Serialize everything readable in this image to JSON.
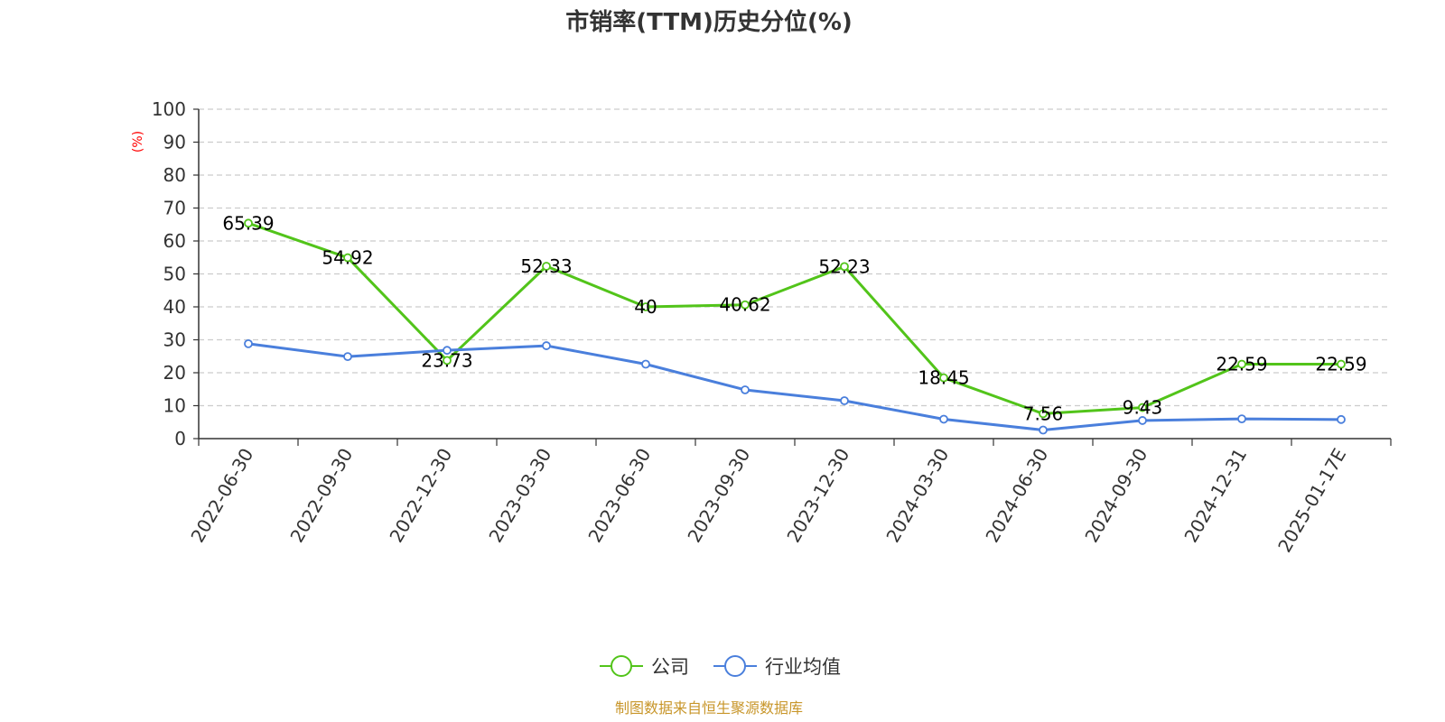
{
  "chart_data": {
    "type": "line",
    "title": "市销率(TTM)历史分位(%)",
    "ylabel": "(%)",
    "ylim": [
      0,
      100
    ],
    "yticks": [
      "0",
      "10",
      "20",
      "30",
      "40",
      "50",
      "60",
      "70",
      "80",
      "90",
      "100"
    ],
    "grid": true,
    "legend_position": "bottom-center",
    "categories": [
      "2022-06-30",
      "2022-09-30",
      "2022-12-30",
      "2023-03-30",
      "2023-06-30",
      "2023-09-30",
      "2023-12-30",
      "2024-03-30",
      "2024-06-30",
      "2024-09-30",
      "2024-12-31",
      "2025-01-17E"
    ],
    "series": [
      {
        "name": "公司",
        "color": "#52c41a",
        "values": [
          65.39,
          54.92,
          23.73,
          52.33,
          40,
          40.62,
          52.23,
          18.45,
          7.56,
          9.43,
          22.59,
          22.59
        ],
        "labels": [
          "65.39",
          "54.92",
          "23.73",
          "52.33",
          "40",
          "40.62",
          "52.23",
          "18.45",
          "7.56",
          "9.43",
          "22.59",
          "22.59"
        ]
      },
      {
        "name": "行业均值",
        "color": "#4a7fdc",
        "values": [
          28.8,
          24.9,
          26.8,
          28.2,
          22.6,
          14.8,
          11.5,
          5.9,
          2.6,
          5.5,
          6.0,
          5.8
        ]
      }
    ]
  },
  "footer": {
    "source": "制图数据来自恒生聚源数据库",
    "source_color": "#c8962a"
  }
}
